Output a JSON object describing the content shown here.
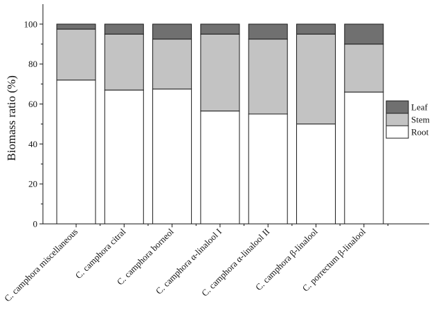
{
  "chart_data": {
    "type": "bar",
    "stacked": true,
    "title": "",
    "xlabel": "",
    "ylabel": "Biomass ratio (%)",
    "ylim": [
      0,
      110
    ],
    "yticks": [
      0,
      20,
      40,
      60,
      80,
      100
    ],
    "grid": false,
    "legend_position": "right",
    "categories": [
      "C. camphora miscellaneous",
      "C. camphora citral",
      "C. camphora borneol",
      "C. camphora α-linalool I",
      "C. camphora α-linalool II",
      "C. camphora β-linalool",
      "C. porrectum β-linalool"
    ],
    "series": [
      {
        "name": "Root",
        "color": "#ffffff",
        "values": [
          72,
          67,
          67.5,
          56.5,
          55,
          50,
          66
        ]
      },
      {
        "name": "Stem",
        "color": "#c3c3c3",
        "values": [
          25.5,
          28,
          25,
          38.5,
          37.5,
          45,
          24
        ]
      },
      {
        "name": "Leaf",
        "color": "#707070",
        "values": [
          2.5,
          5,
          7.5,
          5,
          7.5,
          5,
          10
        ]
      }
    ],
    "legend_order": [
      "Leaf",
      "Stem",
      "Root"
    ]
  }
}
